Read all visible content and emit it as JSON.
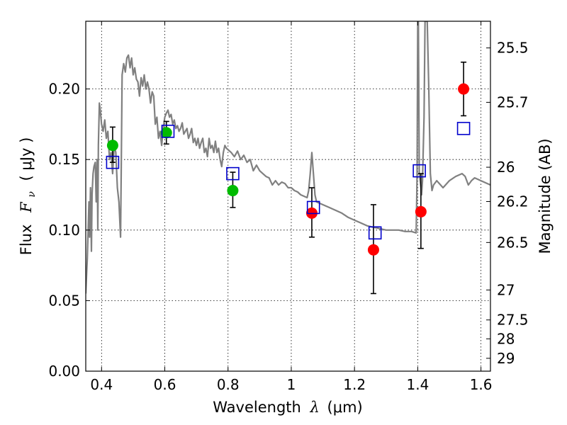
{
  "chart_data": {
    "type": "scatter",
    "xlabel": {
      "prefix": "Wavelength",
      "symbol": "λ",
      "unit": "(μm)"
    },
    "ylabel": {
      "prefix": "Flux",
      "symbol": "F",
      "subscript": "ν",
      "unit": "( μJy )"
    },
    "y2label": "Magnitude (AB)",
    "xlim": [
      0.35,
      1.63
    ],
    "ylim": [
      0.0,
      0.248
    ],
    "grid": true,
    "x_ticks": [
      {
        "value": 0.4,
        "label": "0.4"
      },
      {
        "value": 0.6,
        "label": "0.6"
      },
      {
        "value": 0.8,
        "label": "0.8"
      },
      {
        "value": 1.0,
        "label": "1"
      },
      {
        "value": 1.2,
        "label": "1.2"
      },
      {
        "value": 1.4,
        "label": "1.4"
      },
      {
        "value": 1.6,
        "label": "1.6"
      }
    ],
    "y_ticks": [
      {
        "value": 0.0,
        "label": "0.00"
      },
      {
        "value": 0.05,
        "label": "0.05"
      },
      {
        "value": 0.1,
        "label": "0.10"
      },
      {
        "value": 0.15,
        "label": "0.15"
      },
      {
        "value": 0.2,
        "label": "0.20"
      }
    ],
    "y2_ticks": [
      {
        "mag": 25.5,
        "label": "25.5"
      },
      {
        "mag": 25.7,
        "label": "25.7"
      },
      {
        "mag": 26.0,
        "label": "26"
      },
      {
        "mag": 26.2,
        "label": "26.2"
      },
      {
        "mag": 26.5,
        "label": "26.5"
      },
      {
        "mag": 27.0,
        "label": "27"
      },
      {
        "mag": 27.5,
        "label": "27.5"
      },
      {
        "mag": 28.0,
        "label": "28"
      },
      {
        "mag": 29.0,
        "label": "29"
      }
    ],
    "series": [
      {
        "kind": "line",
        "color": "#808080",
        "points": [
          [
            0.35,
            0.055
          ],
          [
            0.355,
            0.08
          ],
          [
            0.36,
            0.12
          ],
          [
            0.362,
            0.095
          ],
          [
            0.365,
            0.13
          ],
          [
            0.368,
            0.085
          ],
          [
            0.37,
            0.125
          ],
          [
            0.373,
            0.14
          ],
          [
            0.376,
            0.145
          ],
          [
            0.38,
            0.148
          ],
          [
            0.383,
            0.12
          ],
          [
            0.386,
            0.15
          ],
          [
            0.388,
            0.1
          ],
          [
            0.39,
            0.16
          ],
          [
            0.393,
            0.19
          ],
          [
            0.396,
            0.185
          ],
          [
            0.4,
            0.175
          ],
          [
            0.405,
            0.17
          ],
          [
            0.41,
            0.178
          ],
          [
            0.415,
            0.165
          ],
          [
            0.42,
            0.17
          ],
          [
            0.425,
            0.15
          ],
          [
            0.43,
            0.155
          ],
          [
            0.435,
            0.14
          ],
          [
            0.44,
            0.16
          ],
          [
            0.445,
            0.155
          ],
          [
            0.45,
            0.13
          ],
          [
            0.455,
            0.12
          ],
          [
            0.46,
            0.095
          ],
          [
            0.462,
            0.14
          ],
          [
            0.465,
            0.21
          ],
          [
            0.47,
            0.218
          ],
          [
            0.475,
            0.212
          ],
          [
            0.48,
            0.222
          ],
          [
            0.485,
            0.224
          ],
          [
            0.49,
            0.215
          ],
          [
            0.495,
            0.222
          ],
          [
            0.5,
            0.21
          ],
          [
            0.505,
            0.215
          ],
          [
            0.51,
            0.207
          ],
          [
            0.515,
            0.205
          ],
          [
            0.52,
            0.195
          ],
          [
            0.525,
            0.208
          ],
          [
            0.53,
            0.202
          ],
          [
            0.535,
            0.21
          ],
          [
            0.54,
            0.2
          ],
          [
            0.545,
            0.205
          ],
          [
            0.55,
            0.2
          ],
          [
            0.555,
            0.19
          ],
          [
            0.56,
            0.198
          ],
          [
            0.565,
            0.195
          ],
          [
            0.57,
            0.175
          ],
          [
            0.575,
            0.18
          ],
          [
            0.58,
            0.165
          ],
          [
            0.585,
            0.17
          ],
          [
            0.59,
            0.16
          ],
          [
            0.595,
            0.172
          ],
          [
            0.6,
            0.18
          ],
          [
            0.605,
            0.183
          ],
          [
            0.61,
            0.185
          ],
          [
            0.615,
            0.18
          ],
          [
            0.62,
            0.182
          ],
          [
            0.625,
            0.175
          ],
          [
            0.63,
            0.178
          ],
          [
            0.635,
            0.172
          ],
          [
            0.64,
            0.174
          ],
          [
            0.645,
            0.17
          ],
          [
            0.65,
            0.172
          ],
          [
            0.655,
            0.176
          ],
          [
            0.66,
            0.168
          ],
          [
            0.665,
            0.17
          ],
          [
            0.67,
            0.172
          ],
          [
            0.675,
            0.165
          ],
          [
            0.68,
            0.168
          ],
          [
            0.685,
            0.172
          ],
          [
            0.69,
            0.162
          ],
          [
            0.695,
            0.165
          ],
          [
            0.7,
            0.16
          ],
          [
            0.705,
            0.165
          ],
          [
            0.71,
            0.158
          ],
          [
            0.715,
            0.162
          ],
          [
            0.72,
            0.165
          ],
          [
            0.725,
            0.155
          ],
          [
            0.73,
            0.158
          ],
          [
            0.735,
            0.152
          ],
          [
            0.74,
            0.165
          ],
          [
            0.745,
            0.158
          ],
          [
            0.75,
            0.16
          ],
          [
            0.755,
            0.155
          ],
          [
            0.76,
            0.163
          ],
          [
            0.765,
            0.155
          ],
          [
            0.77,
            0.158
          ],
          [
            0.775,
            0.15
          ],
          [
            0.78,
            0.145
          ],
          [
            0.785,
            0.155
          ],
          [
            0.79,
            0.16
          ],
          [
            0.795,
            0.158
          ],
          [
            0.8,
            0.157
          ],
          [
            0.81,
            0.155
          ],
          [
            0.82,
            0.152
          ],
          [
            0.83,
            0.156
          ],
          [
            0.84,
            0.15
          ],
          [
            0.85,
            0.153
          ],
          [
            0.86,
            0.148
          ],
          [
            0.87,
            0.15
          ],
          [
            0.88,
            0.142
          ],
          [
            0.89,
            0.146
          ],
          [
            0.9,
            0.142
          ],
          [
            0.91,
            0.14
          ],
          [
            0.92,
            0.138
          ],
          [
            0.93,
            0.137
          ],
          [
            0.94,
            0.132
          ],
          [
            0.95,
            0.135
          ],
          [
            0.96,
            0.132
          ],
          [
            0.97,
            0.134
          ],
          [
            0.98,
            0.133
          ],
          [
            0.99,
            0.13
          ],
          [
            1.0,
            0.13
          ],
          [
            1.01,
            0.128
          ],
          [
            1.02,
            0.127
          ],
          [
            1.03,
            0.125
          ],
          [
            1.04,
            0.124
          ],
          [
            1.05,
            0.123
          ],
          [
            1.055,
            0.128
          ],
          [
            1.06,
            0.14
          ],
          [
            1.065,
            0.155
          ],
          [
            1.07,
            0.14
          ],
          [
            1.075,
            0.125
          ],
          [
            1.08,
            0.12
          ],
          [
            1.1,
            0.118
          ],
          [
            1.12,
            0.116
          ],
          [
            1.14,
            0.114
          ],
          [
            1.16,
            0.112
          ],
          [
            1.18,
            0.109
          ],
          [
            1.2,
            0.107
          ],
          [
            1.22,
            0.105
          ],
          [
            1.24,
            0.103
          ],
          [
            1.26,
            0.102
          ],
          [
            1.28,
            0.101
          ],
          [
            1.3,
            0.1
          ],
          [
            1.32,
            0.1
          ],
          [
            1.34,
            0.1
          ],
          [
            1.36,
            0.099
          ],
          [
            1.38,
            0.099
          ],
          [
            1.395,
            0.098
          ],
          [
            1.398,
            0.14
          ],
          [
            1.4,
            0.248
          ],
          [
            1.402,
            0.248
          ],
          [
            1.405,
            0.14
          ],
          [
            1.41,
            0.13
          ],
          [
            1.412,
            0.125
          ],
          [
            1.415,
            0.135
          ],
          [
            1.42,
            0.18
          ],
          [
            1.423,
            0.248
          ],
          [
            1.43,
            0.248
          ],
          [
            1.435,
            0.2
          ],
          [
            1.44,
            0.14
          ],
          [
            1.445,
            0.128
          ],
          [
            1.45,
            0.132
          ],
          [
            1.46,
            0.135
          ],
          [
            1.48,
            0.13
          ],
          [
            1.5,
            0.135
          ],
          [
            1.52,
            0.138
          ],
          [
            1.54,
            0.14
          ],
          [
            1.55,
            0.138
          ],
          [
            1.56,
            0.132
          ],
          [
            1.57,
            0.135
          ],
          [
            1.58,
            0.137
          ],
          [
            1.6,
            0.135
          ],
          [
            1.62,
            0.133
          ],
          [
            1.63,
            0.132
          ]
        ]
      },
      {
        "kind": "points",
        "marker": "circle",
        "color": "#00bb00",
        "points": [
          {
            "x": 0.435,
            "y": 0.16,
            "yerr": [
              0.148,
              0.173
            ]
          },
          {
            "x": 0.605,
            "y": 0.169,
            "yerr": [
              0.161,
              0.177
            ]
          },
          {
            "x": 0.815,
            "y": 0.128,
            "yerr": [
              0.116,
              0.141
            ]
          }
        ]
      },
      {
        "kind": "points",
        "marker": "circle",
        "color": "#ff0000",
        "points": [
          {
            "x": 1.065,
            "y": 0.112,
            "yerr": [
              0.095,
              0.13
            ]
          },
          {
            "x": 1.26,
            "y": 0.086,
            "yerr": [
              0.055,
              0.118
            ]
          },
          {
            "x": 1.41,
            "y": 0.113,
            "yerr": [
              0.087,
              0.14
            ]
          },
          {
            "x": 1.545,
            "y": 0.2,
            "yerr": [
              0.181,
              0.219
            ]
          }
        ]
      },
      {
        "kind": "points",
        "marker": "square-open",
        "color": "#0000cc",
        "points": [
          {
            "x": 0.435,
            "y": 0.148
          },
          {
            "x": 0.61,
            "y": 0.17
          },
          {
            "x": 0.815,
            "y": 0.14
          },
          {
            "x": 1.07,
            "y": 0.116
          },
          {
            "x": 1.265,
            "y": 0.098
          },
          {
            "x": 1.405,
            "y": 0.142
          },
          {
            "x": 1.545,
            "y": 0.172
          }
        ]
      }
    ]
  }
}
